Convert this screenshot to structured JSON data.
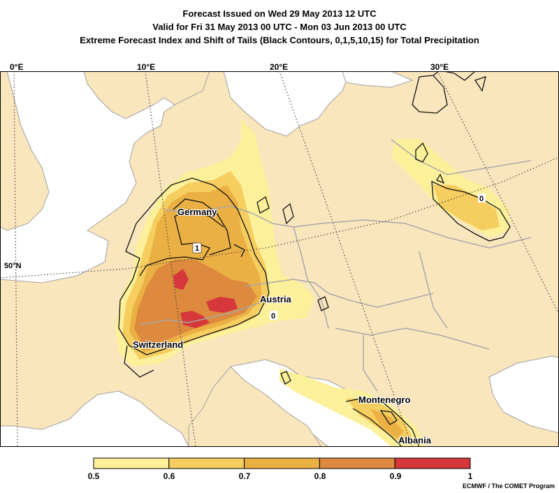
{
  "titles": {
    "line1": "Forecast Issued on Wed 29 May 2013 12 UTC",
    "line2": "Valid for Fri 31 May 2013 00 UTC - Mon 03 Jun 2013 00 UTC",
    "line3": "Extreme Forecast Index and Shift of Tails (Black Contours, 0,1,5,10,15) for Total Precipitation"
  },
  "graticule": {
    "longitudes": [
      "0°E",
      "10°E",
      "20°E",
      "30°E"
    ],
    "latitudes": [
      "50°N"
    ]
  },
  "places": {
    "germany": "Germany",
    "austria": "Austria",
    "switzerland": "Switzerland",
    "montenegro": "Montenegro",
    "albania": "Albania"
  },
  "contour_labels": [
    "1",
    "0",
    "0"
  ],
  "colorbar": {
    "ticks": [
      "0.5",
      "0.6",
      "0.7",
      "0.8",
      "0.9",
      "1"
    ],
    "colors": [
      "#fdf09a",
      "#f6cd5f",
      "#ebb043",
      "#dd8a3e",
      "#d5373a"
    ]
  },
  "colors": {
    "land": "#fae6bd",
    "sea": "#ffffff",
    "border": "#a0a0a0"
  },
  "credit": "ECMWF / The COMET Program"
}
